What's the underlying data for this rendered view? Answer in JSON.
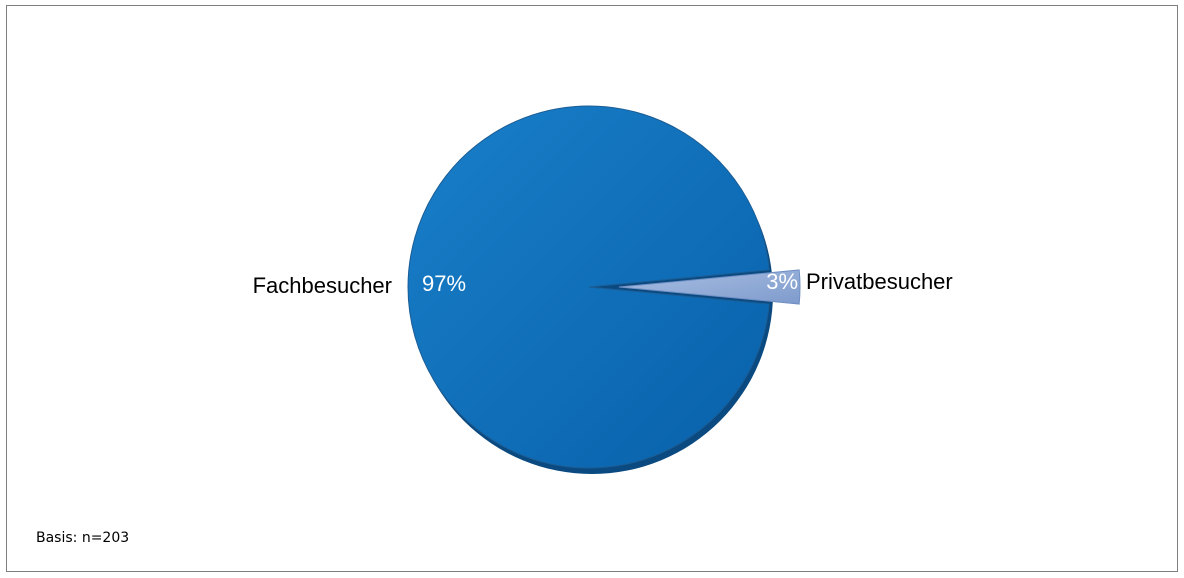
{
  "chart_data": {
    "type": "pie",
    "slices": [
      {
        "label": "Fachbesucher",
        "value": 97,
        "value_label": "97%",
        "color": "#0b6cb7"
      },
      {
        "label": "Privatbesucher",
        "value": 3,
        "value_label": "3%",
        "color": "#8fa9d6"
      }
    ],
    "legend": "none"
  },
  "footnote": "Basis: n=203"
}
